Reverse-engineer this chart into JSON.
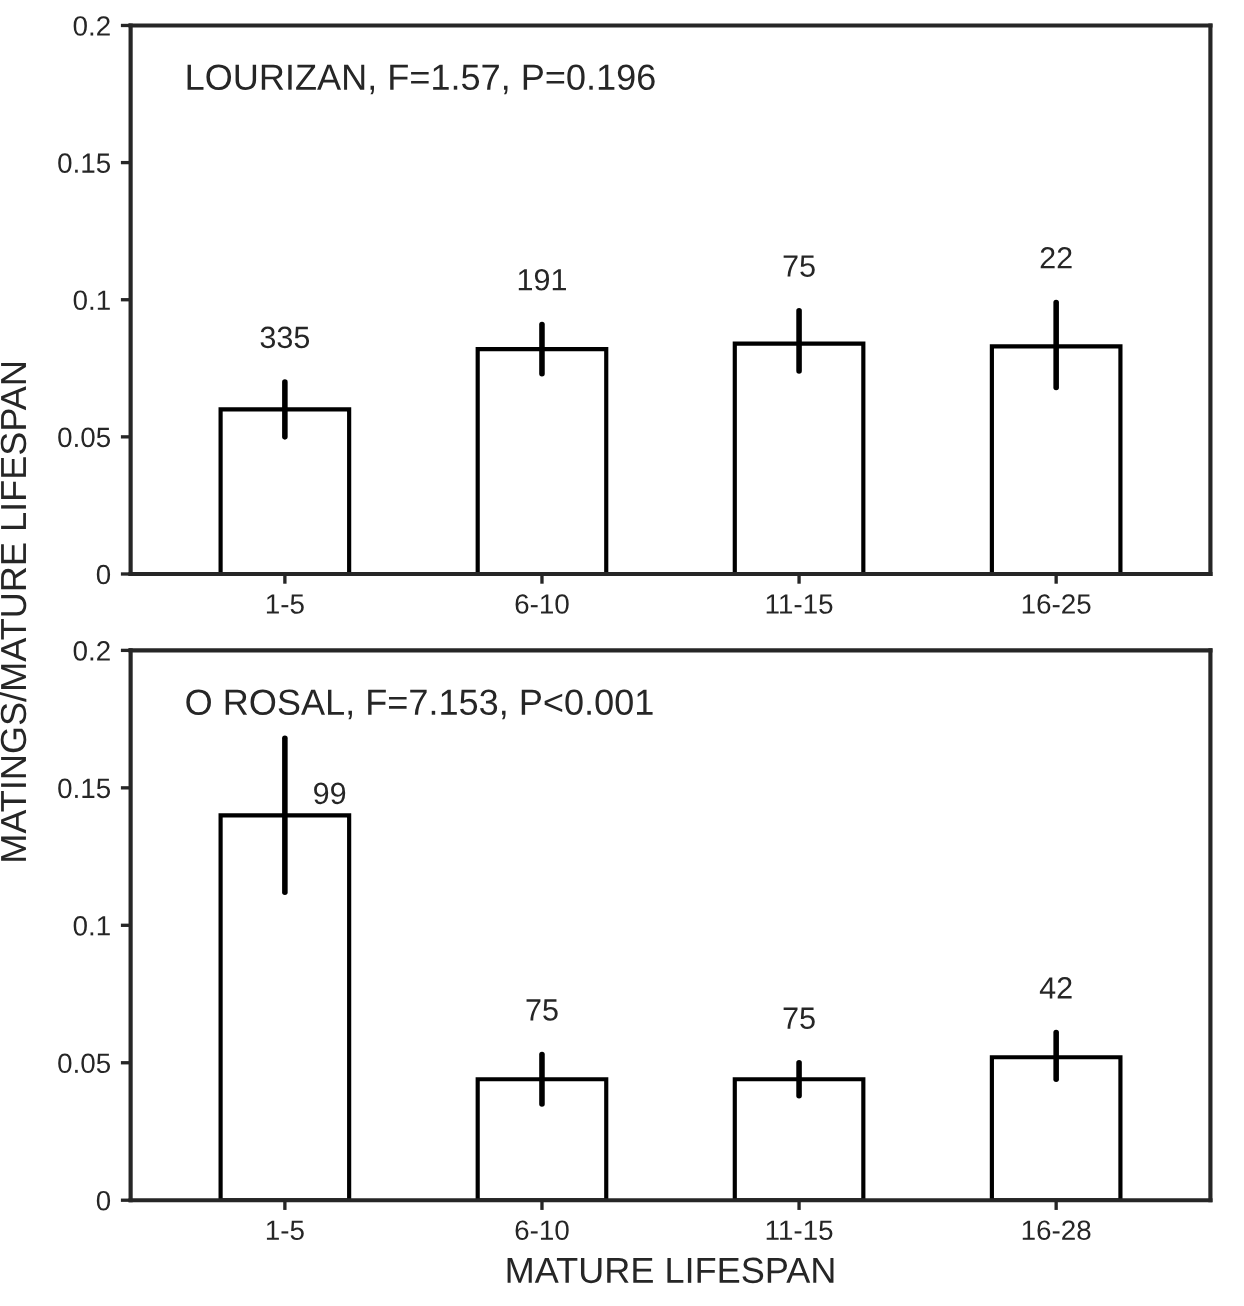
{
  "chart_data": [
    {
      "type": "bar",
      "title": "LOURIZAN, F=1.57, P=0.196",
      "categories": [
        "1-5",
        "6-10",
        "11-15",
        "16-25"
      ],
      "values": [
        0.06,
        0.082,
        0.084,
        0.083
      ],
      "errors": [
        [
          0.05,
          0.07
        ],
        [
          0.073,
          0.091
        ],
        [
          0.074,
          0.096
        ],
        [
          0.068,
          0.099
        ]
      ],
      "color": "#ffffff",
      "ylim": [
        0,
        0.2
      ],
      "yticks": [
        0,
        0.05,
        0.1,
        0.15,
        0.2
      ],
      "grid": false,
      "legend": false,
      "annotations": [
        {
          "text": "335",
          "x": "1-5",
          "y": 0.07
        },
        {
          "text": "191",
          "x": "6-10",
          "y": 0.091
        },
        {
          "text": "75",
          "x": "11-15",
          "y": 0.096
        },
        {
          "text": "22",
          "x": "16-25",
          "y": 0.099
        }
      ]
    },
    {
      "type": "bar",
      "title": "O ROSAL, F=7.153, P<0.001",
      "xlabel": "MATURE LIFESPAN",
      "ylabel": "MATINGS/MATURE LIFESPAN",
      "categories": [
        "1-5",
        "6-10",
        "11-15",
        "16-28"
      ],
      "values": [
        0.14,
        0.044,
        0.044,
        0.052
      ],
      "errors": [
        [
          0.112,
          0.168
        ],
        [
          0.035,
          0.053
        ],
        [
          0.038,
          0.05
        ],
        [
          0.044,
          0.061
        ]
      ],
      "color": "#ffffff",
      "ylim": [
        0,
        0.2
      ],
      "yticks": [
        0,
        0.05,
        0.1,
        0.15,
        0.2
      ],
      "grid": false,
      "legend": false,
      "annotations": [
        {
          "text": "99",
          "x": "1-5",
          "y": 0.158
        },
        {
          "text": "75",
          "x": "6-10",
          "y": 0.053
        },
        {
          "text": "75",
          "x": "11-15",
          "y": 0.05
        },
        {
          "text": "42",
          "x": "16-28",
          "y": 0.061
        }
      ]
    }
  ]
}
